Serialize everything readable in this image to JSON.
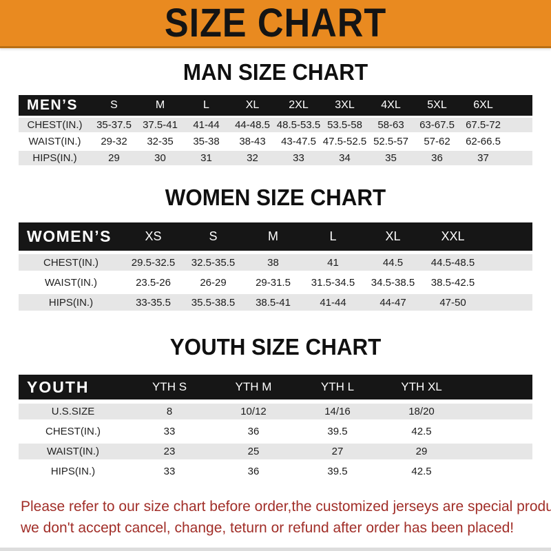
{
  "banner": {
    "title": "SIZE CHART"
  },
  "colors": {
    "banner_bg": "#e98a20",
    "band_bg": "#161616",
    "row_alt_bg": "#e6e6e6",
    "disclaimer_red": "#a12e28"
  },
  "sections": [
    {
      "heading": "MAN SIZE CHART",
      "header_label": "MEN’S",
      "columns": [
        "S",
        "M",
        "L",
        "XL",
        "2XL",
        "3XL",
        "4XL",
        "5XL",
        "6XL"
      ],
      "rows": [
        {
          "label": "CHEST(IN.)",
          "values": [
            "35-37.5",
            "37.5-41",
            "41-44",
            "44-48.5",
            "48.5-53.5",
            "53.5-58",
            "58-63",
            "63-67.5",
            "67.5-72"
          ]
        },
        {
          "label": "WAIST(IN.)",
          "values": [
            "29-32",
            "32-35",
            "35-38",
            "38-43",
            "43-47.5",
            "47.5-52.5",
            "52.5-57",
            "57-62",
            "62-66.5"
          ]
        },
        {
          "label": "HIPS(IN.)",
          "values": [
            "29",
            "30",
            "31",
            "32",
            "33",
            "34",
            "35",
            "36",
            "37"
          ]
        }
      ]
    },
    {
      "heading": "WOMEN SIZE CHART",
      "header_label": "WOMEN’S",
      "columns": [
        "XS",
        "S",
        "M",
        "L",
        "XL",
        "XXL"
      ],
      "rows": [
        {
          "label": "CHEST(IN.)",
          "values": [
            "29.5-32.5",
            "32.5-35.5",
            "38",
            "41",
            "44.5",
            "44.5-48.5"
          ]
        },
        {
          "label": "WAIST(IN.)",
          "values": [
            "23.5-26",
            "26-29",
            "29-31.5",
            "31.5-34.5",
            "34.5-38.5",
            "38.5-42.5"
          ]
        },
        {
          "label": "HIPS(IN.)",
          "values": [
            "33-35.5",
            "35.5-38.5",
            "38.5-41",
            "41-44",
            "44-47",
            "47-50"
          ]
        }
      ]
    },
    {
      "heading": "YOUTH SIZE CHART",
      "header_label": "YOUTH",
      "columns": [
        "YTH S",
        "YTH M",
        "YTH L",
        "YTH XL"
      ],
      "rows": [
        {
          "label": "U.S.SIZE",
          "values": [
            "8",
            "10/12",
            "14/16",
            "18/20"
          ]
        },
        {
          "label": "CHEST(IN.)",
          "values": [
            "33",
            "36",
            "39.5",
            "42.5"
          ]
        },
        {
          "label": "WAIST(IN.)",
          "values": [
            "23",
            "25",
            "27",
            "29"
          ]
        },
        {
          "label": "HIPS(IN.)",
          "values": [
            "33",
            "36",
            "39.5",
            "42.5"
          ]
        }
      ]
    }
  ],
  "disclaimer": {
    "line1": "Please refer to our size chart before order,the customized jerseys are special products,",
    "line2": "we don't accept cancel, change, teturn or refund after order has been placed!"
  }
}
